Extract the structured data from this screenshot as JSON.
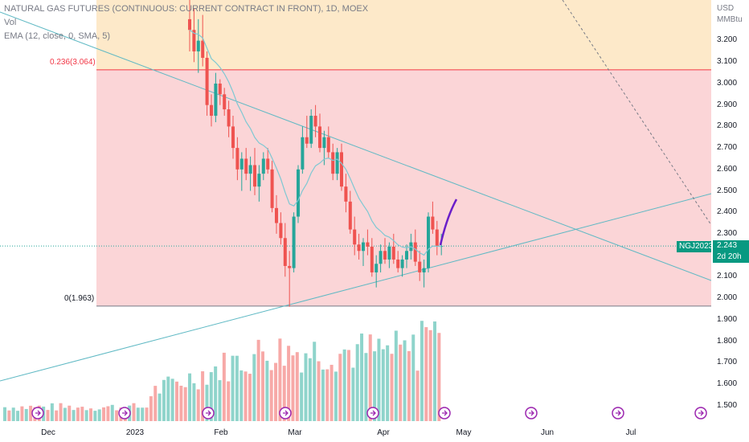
{
  "legend": {
    "title": "NATURAL GAS FUTURES (CONTINUOUS: CURRENT CONTRACT IN FRONT), 1D, MOEX",
    "vol": "Vol",
    "ema": "EMA (12, close, 0, SMA, 5)"
  },
  "fib": {
    "level_236": "0.236(3.064)",
    "level_0": "0(1.963)"
  },
  "price_axis": {
    "currency": "USD",
    "unit": "MMBtu",
    "ticks": [
      "3.200",
      "3.100",
      "3.000",
      "2.900",
      "2.800",
      "2.700",
      "2.600",
      "2.500",
      "2.400",
      "2.300",
      "2.100",
      "2.000",
      "1.900",
      "1.800",
      "1.700",
      "1.600",
      "1.500"
    ]
  },
  "badges": {
    "ticker": "NGJ2023",
    "price": "2.243",
    "countdown": "2d 20h"
  },
  "time_axis": {
    "labels": [
      "Dec",
      "2023",
      "Feb",
      "Mar",
      "Apr",
      "May",
      "Jun",
      "Jul"
    ]
  },
  "colors": {
    "up": "#26a69a",
    "down": "#ef5350",
    "ema": "#7ec8d3",
    "trendline": "#5fb9c4",
    "fib_top_zone": "#fde9c9",
    "fib_mid_zone": "#fbd5d7",
    "fib_236_line": "#f23645",
    "drawing": "#6a1fc9",
    "event_icon": "#9c27b0"
  },
  "icons": {
    "event_marker": "dividend-arrow-icon"
  },
  "chart_data": {
    "type": "candlestick",
    "symbol": "NGJ2023",
    "last_price": 2.243,
    "fib_levels": [
      {
        "ratio": 0.236,
        "price": 3.064
      },
      {
        "ratio": 0,
        "price": 1.963
      }
    ],
    "candles": [
      [
        3.3,
        3.4,
        3.15,
        3.25
      ],
      [
        3.25,
        3.35,
        3.1,
        3.15
      ],
      [
        3.15,
        3.3,
        3.05,
        3.2
      ],
      [
        3.2,
        3.32,
        3.08,
        3.12
      ],
      [
        3.12,
        3.15,
        2.85,
        2.9
      ],
      [
        2.9,
        2.95,
        2.8,
        2.85
      ],
      [
        2.85,
        3.05,
        2.82,
        3.0
      ],
      [
        3.0,
        3.02,
        2.9,
        2.95
      ],
      [
        2.95,
        2.98,
        2.85,
        2.88
      ],
      [
        2.88,
        2.92,
        2.75,
        2.8
      ],
      [
        2.8,
        2.85,
        2.65,
        2.7
      ],
      [
        2.7,
        2.75,
        2.55,
        2.6
      ],
      [
        2.6,
        2.68,
        2.5,
        2.65
      ],
      [
        2.65,
        2.7,
        2.55,
        2.58
      ],
      [
        2.58,
        2.66,
        2.5,
        2.62
      ],
      [
        2.62,
        2.7,
        2.48,
        2.52
      ],
      [
        2.52,
        2.62,
        2.45,
        2.58
      ],
      [
        2.58,
        2.68,
        2.55,
        2.65
      ],
      [
        2.65,
        2.7,
        2.58,
        2.6
      ],
      [
        2.6,
        2.64,
        2.4,
        2.42
      ],
      [
        2.42,
        2.48,
        2.3,
        2.35
      ],
      [
        2.35,
        2.4,
        2.25,
        2.28
      ],
      [
        2.28,
        2.35,
        2.1,
        2.15
      ],
      [
        2.15,
        2.22,
        1.96,
        2.14
      ],
      [
        2.14,
        2.4,
        2.12,
        2.38
      ],
      [
        2.38,
        2.62,
        2.35,
        2.6
      ],
      [
        2.6,
        2.8,
        2.58,
        2.75
      ],
      [
        2.75,
        2.85,
        2.7,
        2.72
      ],
      [
        2.72,
        2.88,
        2.7,
        2.85
      ],
      [
        2.85,
        2.9,
        2.75,
        2.8
      ],
      [
        2.8,
        2.86,
        2.68,
        2.7
      ],
      [
        2.7,
        2.78,
        2.62,
        2.75
      ],
      [
        2.75,
        2.8,
        2.65,
        2.68
      ],
      [
        2.68,
        2.72,
        2.55,
        2.58
      ],
      [
        2.58,
        2.7,
        2.55,
        2.68
      ],
      [
        2.68,
        2.72,
        2.5,
        2.52
      ],
      [
        2.52,
        2.58,
        2.4,
        2.45
      ],
      [
        2.45,
        2.5,
        2.3,
        2.32
      ],
      [
        2.32,
        2.38,
        2.2,
        2.25
      ],
      [
        2.25,
        2.3,
        2.18,
        2.22
      ],
      [
        2.22,
        2.28,
        2.15,
        2.26
      ],
      [
        2.26,
        2.32,
        2.2,
        2.24
      ],
      [
        2.24,
        2.28,
        2.1,
        2.12
      ],
      [
        2.12,
        2.2,
        2.05,
        2.16
      ],
      [
        2.16,
        2.25,
        2.12,
        2.22
      ],
      [
        2.22,
        2.28,
        2.16,
        2.18
      ],
      [
        2.18,
        2.26,
        2.14,
        2.24
      ],
      [
        2.24,
        2.3,
        2.16,
        2.18
      ],
      [
        2.18,
        2.22,
        2.12,
        2.14
      ],
      [
        2.14,
        2.2,
        2.1,
        2.18
      ],
      [
        2.18,
        2.25,
        2.14,
        2.22
      ],
      [
        2.22,
        2.3,
        2.18,
        2.26
      ],
      [
        2.26,
        2.32,
        2.15,
        2.17
      ],
      [
        2.17,
        2.22,
        2.08,
        2.12
      ],
      [
        2.12,
        2.18,
        2.05,
        2.14
      ],
      [
        2.14,
        2.4,
        2.12,
        2.38
      ],
      [
        2.38,
        2.45,
        2.3,
        2.32
      ],
      [
        2.32,
        2.36,
        2.2,
        2.24
      ],
      [
        2.24,
        2.3,
        2.2,
        2.243
      ]
    ]
  }
}
